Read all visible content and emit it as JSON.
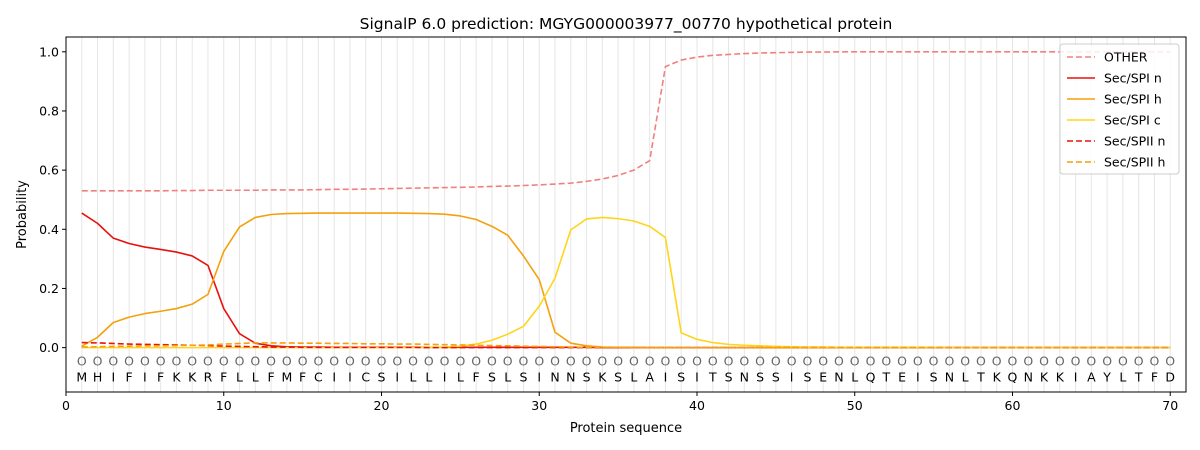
{
  "chart_data": {
    "type": "line",
    "title": "SignalP 6.0 prediction: MGYG000003977_00770 hypothetical protein",
    "xlabel": "Protein sequence",
    "ylabel": "Probability",
    "xlim": [
      0,
      71
    ],
    "ylim": [
      -0.15,
      1.05
    ],
    "x_ticks": [
      0,
      10,
      20,
      30,
      40,
      50,
      60,
      70
    ],
    "y_ticks": [
      0.0,
      0.2,
      0.4,
      0.6,
      0.8,
      1.0
    ],
    "x_tick_labels": [
      "0",
      "10",
      "20",
      "30",
      "40",
      "50",
      "60",
      "70"
    ],
    "y_tick_labels": [
      "0.0",
      "0.2",
      "0.4",
      "0.6",
      "0.8",
      "1.0"
    ],
    "grid": "vertical",
    "legend_position": "top-right",
    "sequence": [
      "M",
      "H",
      "I",
      "F",
      "I",
      "F",
      "K",
      "K",
      "R",
      "F",
      "L",
      "L",
      "F",
      "M",
      "F",
      "C",
      "I",
      "I",
      "C",
      "S",
      "I",
      "L",
      "L",
      "I",
      "L",
      "F",
      "S",
      "L",
      "S",
      "I",
      "N",
      "N",
      "S",
      "K",
      "S",
      "L",
      "A",
      "I",
      "S",
      "I",
      "T",
      "S",
      "N",
      "S",
      "S",
      "I",
      "S",
      "E",
      "N",
      "L",
      "Q",
      "T",
      "E",
      "I",
      "S",
      "N",
      "L",
      "T",
      "K",
      "Q",
      "N",
      "K",
      "K",
      "I",
      "A",
      "Y",
      "L",
      "T",
      "F",
      "D"
    ],
    "position_marker": "O",
    "series": [
      {
        "name": "OTHER",
        "color": "#f08080",
        "dash": "dashed",
        "values": [
          0.53,
          0.53,
          0.53,
          0.53,
          0.53,
          0.53,
          0.531,
          0.531,
          0.532,
          0.532,
          0.532,
          0.532,
          0.533,
          0.533,
          0.533,
          0.534,
          0.535,
          0.535,
          0.536,
          0.537,
          0.538,
          0.539,
          0.54,
          0.541,
          0.542,
          0.543,
          0.545,
          0.546,
          0.548,
          0.55,
          0.553,
          0.556,
          0.562,
          0.57,
          0.582,
          0.6,
          0.632,
          0.95,
          0.972,
          0.982,
          0.988,
          0.991,
          0.994,
          0.996,
          0.997,
          0.998,
          0.999,
          0.999,
          1.0,
          1.0,
          1.0,
          1.0,
          1.0,
          1.0,
          1.0,
          1.0,
          1.0,
          1.0,
          1.0,
          1.0,
          1.0,
          1.0,
          1.0,
          1.0,
          1.0,
          1.0,
          1.0,
          1.0,
          1.0,
          1.0
        ]
      },
      {
        "name": "Sec/SPI n",
        "color": "#e8120c",
        "dash": "solid",
        "values": [
          0.455,
          0.42,
          0.37,
          0.352,
          0.34,
          0.332,
          0.323,
          0.31,
          0.278,
          0.132,
          0.047,
          0.015,
          0.006,
          0.003,
          0.002,
          0.002,
          0.001,
          0.001,
          0.001,
          0.001,
          0.001,
          0.001,
          0.001,
          0.001,
          0.001,
          0.001,
          0.001,
          0.001,
          0.001,
          0.001,
          0.001,
          0.001,
          0.001,
          0.0,
          0.0,
          0.0,
          0.0,
          0.0,
          0.0,
          0.0,
          0.0,
          0.0,
          0.0,
          0.0,
          0.0,
          0.0,
          0.0,
          0.0,
          0.0,
          0.0,
          0.0,
          0.0,
          0.0,
          0.0,
          0.0,
          0.0,
          0.0,
          0.0,
          0.0,
          0.0,
          0.0,
          0.0,
          0.0,
          0.0,
          0.0,
          0.0,
          0.0,
          0.0,
          0.0,
          0.0
        ]
      },
      {
        "name": "Sec/SPI h",
        "color": "#f5a00c",
        "dash": "solid",
        "values": [
          0.005,
          0.035,
          0.085,
          0.103,
          0.115,
          0.123,
          0.132,
          0.147,
          0.18,
          0.325,
          0.408,
          0.44,
          0.45,
          0.453,
          0.454,
          0.455,
          0.455,
          0.455,
          0.455,
          0.455,
          0.455,
          0.454,
          0.453,
          0.451,
          0.445,
          0.433,
          0.41,
          0.38,
          0.31,
          0.23,
          0.052,
          0.015,
          0.006,
          0.002,
          0.001,
          0.001,
          0.0,
          0.0,
          0.0,
          0.0,
          0.0,
          0.0,
          0.0,
          0.0,
          0.0,
          0.0,
          0.0,
          0.0,
          0.0,
          0.0,
          0.0,
          0.0,
          0.0,
          0.0,
          0.0,
          0.0,
          0.0,
          0.0,
          0.0,
          0.0,
          0.0,
          0.0,
          0.0,
          0.0,
          0.0,
          0.0,
          0.0,
          0.0,
          0.0,
          0.0
        ]
      },
      {
        "name": "Sec/SPI c",
        "color": "#ffd51c",
        "dash": "solid",
        "values": [
          0.0,
          0.0,
          0.0,
          0.0,
          0.0,
          0.0,
          0.0,
          0.0,
          0.0,
          0.0,
          0.0,
          0.0,
          0.0,
          0.0,
          0.0,
          0.0,
          0.0,
          0.0,
          0.0,
          0.0,
          0.0,
          0.0,
          0.001,
          0.002,
          0.005,
          0.012,
          0.025,
          0.045,
          0.072,
          0.14,
          0.235,
          0.398,
          0.435,
          0.44,
          0.436,
          0.428,
          0.41,
          0.372,
          0.05,
          0.028,
          0.017,
          0.011,
          0.008,
          0.006,
          0.004,
          0.003,
          0.002,
          0.002,
          0.001,
          0.001,
          0.001,
          0.001,
          0.001,
          0.001,
          0.001,
          0.0,
          0.0,
          0.0,
          0.0,
          0.0,
          0.0,
          0.0,
          0.0,
          0.0,
          0.0,
          0.0,
          0.0,
          0.0,
          0.0,
          0.0
        ]
      },
      {
        "name": "Sec/SPII n",
        "color": "#e8120c",
        "dash": "dashed",
        "values": [
          0.017,
          0.016,
          0.014,
          0.012,
          0.011,
          0.01,
          0.009,
          0.008,
          0.007,
          0.005,
          0.004,
          0.003,
          0.002,
          0.002,
          0.001,
          0.001,
          0.001,
          0.001,
          0.001,
          0.001,
          0.001,
          0.001,
          0.0,
          0.0,
          0.0,
          0.0,
          0.0,
          0.0,
          0.0,
          0.0,
          0.0,
          0.0,
          0.0,
          0.0,
          0.0,
          0.0,
          0.0,
          0.0,
          0.0,
          0.0,
          0.0,
          0.0,
          0.0,
          0.0,
          0.0,
          0.0,
          0.0,
          0.0,
          0.0,
          0.0,
          0.0,
          0.0,
          0.0,
          0.0,
          0.0,
          0.0,
          0.0,
          0.0,
          0.0,
          0.0,
          0.0,
          0.0,
          0.0,
          0.0,
          0.0,
          0.0,
          0.0,
          0.0,
          0.0,
          0.0
        ]
      },
      {
        "name": "Sec/SPII h",
        "color": "#f5a00c",
        "dash": "dashed",
        "values": [
          0.002,
          0.003,
          0.004,
          0.005,
          0.006,
          0.006,
          0.007,
          0.008,
          0.009,
          0.012,
          0.014,
          0.016,
          0.016,
          0.016,
          0.015,
          0.015,
          0.014,
          0.014,
          0.013,
          0.013,
          0.012,
          0.012,
          0.011,
          0.01,
          0.009,
          0.008,
          0.007,
          0.006,
          0.005,
          0.004,
          0.003,
          0.002,
          0.001,
          0.001,
          0.001,
          0.0,
          0.0,
          0.0,
          0.0,
          0.0,
          0.0,
          0.0,
          0.0,
          0.0,
          0.0,
          0.0,
          0.0,
          0.0,
          0.0,
          0.0,
          0.0,
          0.0,
          0.0,
          0.0,
          0.0,
          0.0,
          0.0,
          0.0,
          0.0,
          0.0,
          0.0,
          0.0,
          0.0,
          0.0,
          0.0,
          0.0,
          0.0,
          0.0,
          0.0,
          0.0
        ]
      }
    ]
  }
}
